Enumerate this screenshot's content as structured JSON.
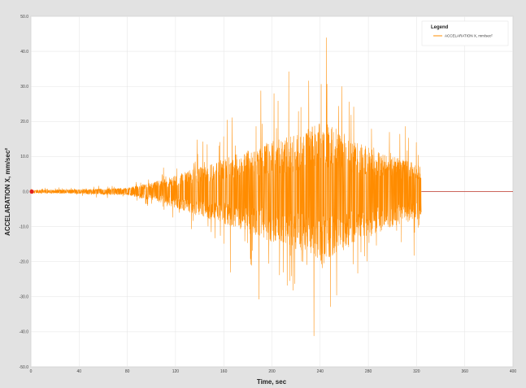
{
  "chart_data": {
    "type": "line",
    "title": "",
    "xlabel": "Time, sec",
    "ylabel": "ACCELARATION X, mm/sec²",
    "xlim": [
      0,
      400
    ],
    "ylim": [
      -50,
      50
    ],
    "x_ticks": [
      "0",
      "40",
      "80",
      "120",
      "160",
      "200",
      "240",
      "280",
      "320",
      "360",
      "400"
    ],
    "y_ticks": [
      "50.0",
      "40.0",
      "30.0",
      "20.0",
      "10.0",
      "0.0",
      "-10.0",
      "-20.0",
      "-30.0",
      "-40.0",
      "-50.0"
    ],
    "grid": true,
    "legend_position": "top-right",
    "legend": {
      "title": "Legend",
      "entries": [
        "ACCELARATION X, mm/sec²"
      ]
    },
    "series": [
      {
        "name": "ACCELARATION X, mm/sec²",
        "color": "#ff8c00",
        "signal_duration": 324,
        "envelope": [
          {
            "x": 0,
            "amp": 1.0
          },
          {
            "x": 40,
            "amp": 1.5
          },
          {
            "x": 80,
            "amp": 2.5
          },
          {
            "x": 95,
            "amp": 5.0
          },
          {
            "x": 110,
            "amp": 8.0
          },
          {
            "x": 130,
            "amp": 14.0
          },
          {
            "x": 160,
            "amp": 22.0
          },
          {
            "x": 200,
            "amp": 34.0
          },
          {
            "x": 225,
            "amp": 40.0
          },
          {
            "x": 240,
            "amp": 48.0
          },
          {
            "x": 255,
            "amp": 42.0
          },
          {
            "x": 280,
            "amp": 30.0
          },
          {
            "x": 300,
            "amp": 24.0
          },
          {
            "x": 324,
            "amp": 18.0
          },
          {
            "x": 400,
            "amp": 0.0
          }
        ]
      }
    ]
  },
  "colors": {
    "background": "#e2e2e2",
    "plot_area": "#ffffff",
    "grid": "#e3e3e3",
    "line": "#ff8c00",
    "zero_line": "#c0392b",
    "axis": "#555555"
  }
}
